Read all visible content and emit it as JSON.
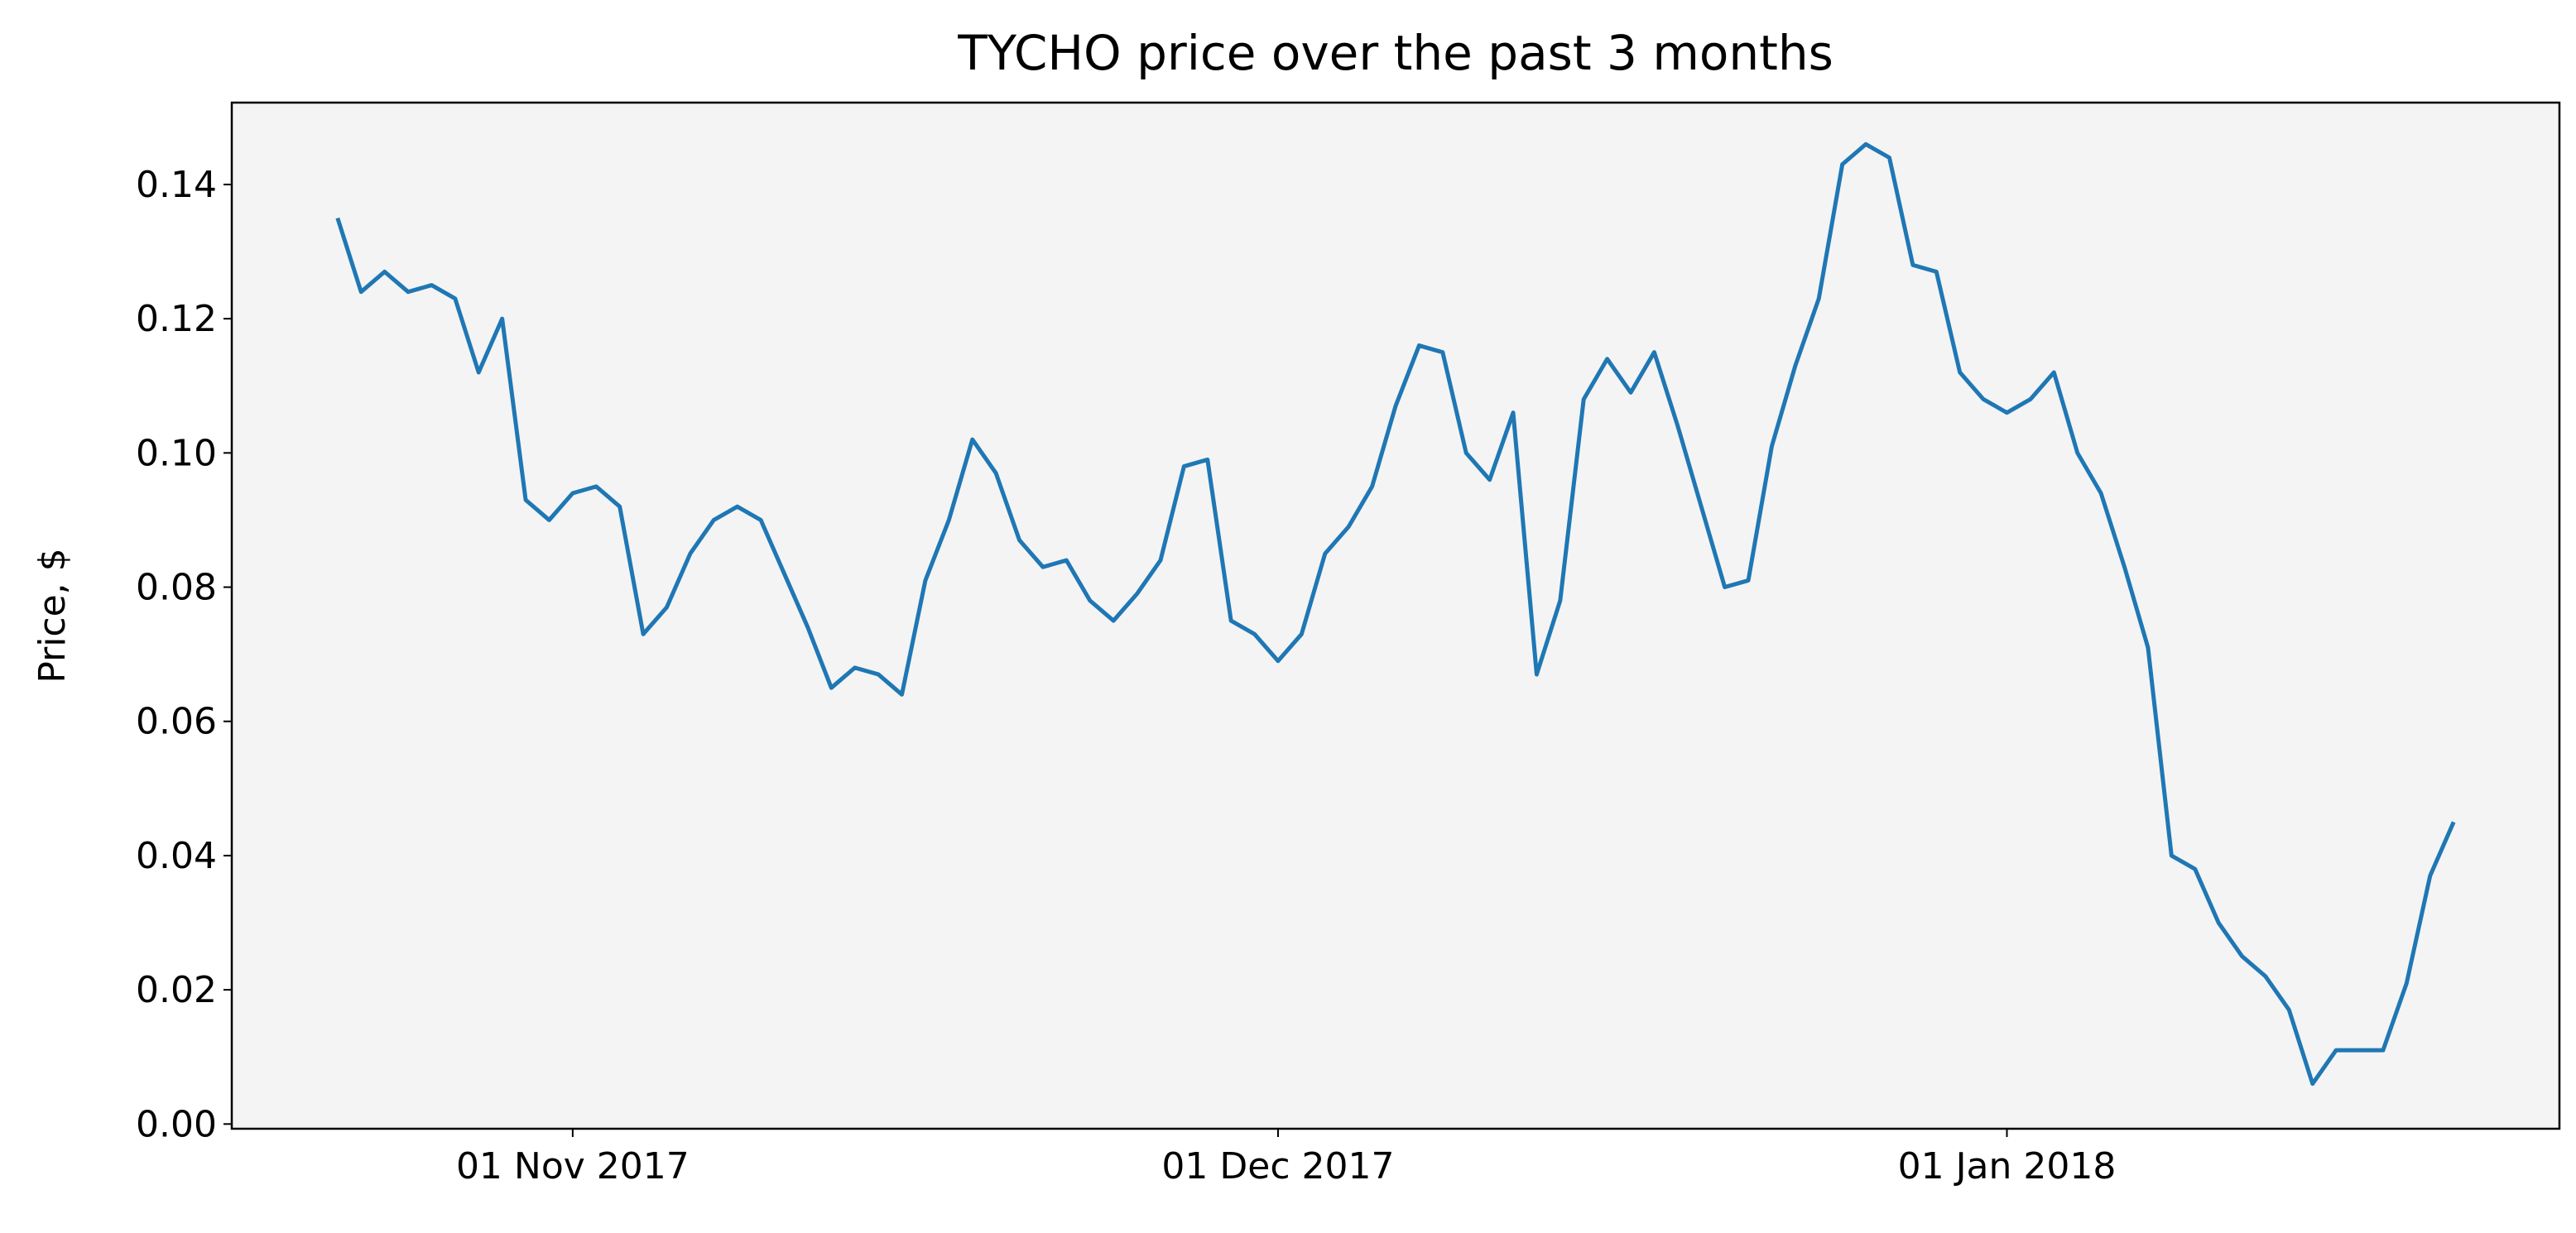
{
  "chart_data": {
    "type": "line",
    "title": "TYCHO price over the past 3 months",
    "ylabel": "Price, $",
    "x": [
      "2017-10-22",
      "2017-10-23",
      "2017-10-24",
      "2017-10-25",
      "2017-10-26",
      "2017-10-27",
      "2017-10-28",
      "2017-10-29",
      "2017-10-30",
      "2017-10-31",
      "2017-11-01",
      "2017-11-02",
      "2017-11-03",
      "2017-11-04",
      "2017-11-05",
      "2017-11-06",
      "2017-11-07",
      "2017-11-08",
      "2017-11-09",
      "2017-11-10",
      "2017-11-11",
      "2017-11-12",
      "2017-11-13",
      "2017-11-14",
      "2017-11-15",
      "2017-11-16",
      "2017-11-17",
      "2017-11-18",
      "2017-11-19",
      "2017-11-20",
      "2017-11-21",
      "2017-11-22",
      "2017-11-23",
      "2017-11-24",
      "2017-11-25",
      "2017-11-26",
      "2017-11-27",
      "2017-11-28",
      "2017-11-29",
      "2017-11-30",
      "2017-12-01",
      "2017-12-02",
      "2017-12-03",
      "2017-12-04",
      "2017-12-05",
      "2017-12-06",
      "2017-12-07",
      "2017-12-08",
      "2017-12-09",
      "2017-12-10",
      "2017-12-11",
      "2017-12-12",
      "2017-12-13",
      "2017-12-14",
      "2017-12-15",
      "2017-12-16",
      "2017-12-17",
      "2017-12-18",
      "2017-12-19",
      "2017-12-20",
      "2017-12-21",
      "2017-12-22",
      "2017-12-23",
      "2017-12-24",
      "2017-12-25",
      "2017-12-26",
      "2017-12-27",
      "2017-12-28",
      "2017-12-29",
      "2017-12-30",
      "2017-12-31",
      "2018-01-01",
      "2018-01-02",
      "2018-01-03",
      "2018-01-04",
      "2018-01-05",
      "2018-01-06",
      "2018-01-07",
      "2018-01-08",
      "2018-01-09",
      "2018-01-10",
      "2018-01-11",
      "2018-01-12",
      "2018-01-13",
      "2018-01-14",
      "2018-01-15",
      "2018-01-16",
      "2018-01-17",
      "2018-01-18",
      "2018-01-19",
      "2018-01-20"
    ],
    "series": [
      {
        "color": "#1f77b4",
        "values": [
          0.135,
          0.124,
          0.127,
          0.124,
          0.125,
          0.123,
          0.112,
          0.12,
          0.093,
          0.09,
          0.094,
          0.095,
          0.092,
          0.073,
          0.077,
          0.085,
          0.09,
          0.092,
          0.09,
          0.082,
          0.074,
          0.065,
          0.068,
          0.067,
          0.064,
          0.081,
          0.09,
          0.102,
          0.097,
          0.087,
          0.083,
          0.084,
          0.078,
          0.075,
          0.079,
          0.084,
          0.098,
          0.099,
          0.075,
          0.073,
          0.069,
          0.073,
          0.085,
          0.089,
          0.095,
          0.107,
          0.116,
          0.115,
          0.1,
          0.096,
          0.106,
          0.067,
          0.078,
          0.108,
          0.114,
          0.109,
          0.115,
          0.104,
          0.092,
          0.08,
          0.081,
          0.101,
          0.113,
          0.123,
          0.143,
          0.146,
          0.144,
          0.128,
          0.127,
          0.112,
          0.108,
          0.106,
          0.108,
          0.112,
          0.1,
          0.094,
          0.083,
          0.071,
          0.04,
          0.038,
          0.03,
          0.025,
          0.022,
          0.017,
          0.006,
          0.011,
          0.011,
          0.011,
          0.021,
          0.037,
          0.045
        ]
      }
    ],
    "xlim": [
      "2017-10-17T12:00Z",
      "2018-01-24T12:00Z"
    ],
    "xticks": [
      {
        "value": "2017-11-01",
        "label": "01 Nov 2017"
      },
      {
        "value": "2017-12-01",
        "label": "01 Dec 2017"
      },
      {
        "value": "2018-01-01",
        "label": "01 Jan 2018"
      }
    ],
    "ylim": [
      -0.0007,
      0.1522
    ],
    "yticks": [
      {
        "value": 0,
        "label": "0.00"
      },
      0.02,
      0.04,
      0.06,
      0.08,
      {
        "value": 0.1,
        "label": "0.10"
      },
      0.12,
      0.14
    ],
    "background": "#f4f4f4"
  }
}
